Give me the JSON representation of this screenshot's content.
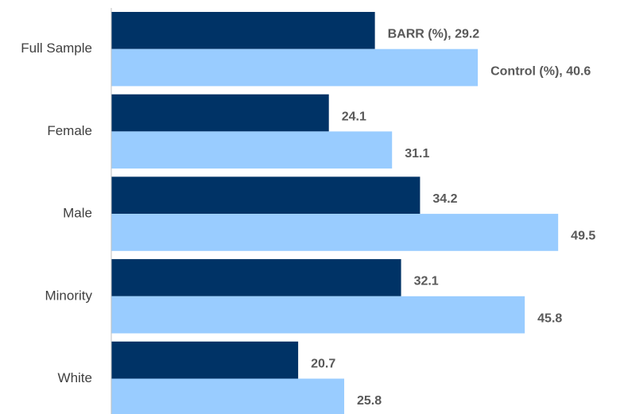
{
  "chart_data": {
    "type": "bar",
    "orientation": "horizontal",
    "categories": [
      "Full Sample",
      "Female",
      "Male",
      "Minority",
      "White"
    ],
    "series": [
      {
        "name": "BARR (%)",
        "color": "#003366",
        "values": [
          29.2,
          24.1,
          34.2,
          32.1,
          20.7
        ],
        "value_labels": [
          "BARR (%), 29.2",
          "24.1",
          "34.2",
          "32.1",
          "20.7"
        ]
      },
      {
        "name": "Control (%)",
        "color": "#99ccff",
        "values": [
          40.6,
          31.1,
          49.5,
          45.8,
          25.8
        ],
        "value_labels": [
          "Control (%), 40.6",
          "31.1",
          "49.5",
          "45.8",
          "25.8"
        ]
      }
    ],
    "xlim": [
      0,
      56
    ]
  }
}
